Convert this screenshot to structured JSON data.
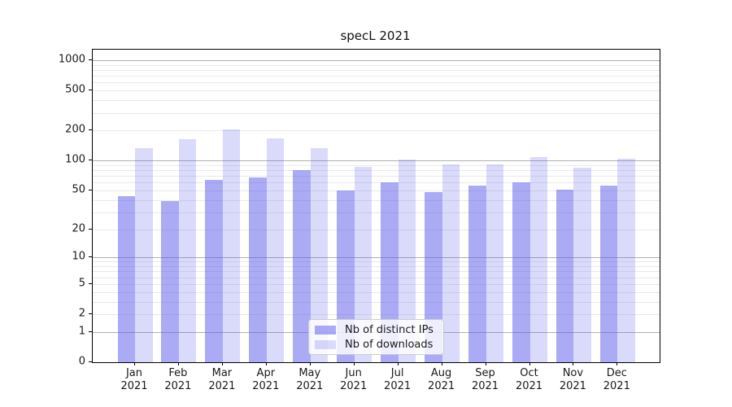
{
  "title": "specL 2021",
  "chart_data": {
    "type": "bar",
    "title": "specL 2021",
    "xlabel": "",
    "ylabel": "",
    "categories": [
      "Jan 2021",
      "Feb 2021",
      "Mar 2021",
      "Apr 2021",
      "May 2021",
      "Jun 2021",
      "Jul 2021",
      "Aug 2021",
      "Sep 2021",
      "Oct 2021",
      "Nov 2021",
      "Dec 2021"
    ],
    "series": [
      {
        "name": "Nb of distinct IPs",
        "color": "rgba(88,88,235,0.50)",
        "values": [
          44,
          39,
          64,
          67,
          80,
          50,
          60,
          48,
          56,
          60,
          51,
          56
        ]
      },
      {
        "name": "Nb of downloads",
        "color": "rgba(88,88,235,0.22)",
        "values": [
          132,
          163,
          205,
          166,
          133,
          87,
          102,
          91,
          91,
          108,
          84,
          104
        ]
      }
    ],
    "yscale": "log1p",
    "ylim": [
      0,
      1274
    ],
    "yticks": [
      0,
      1,
      2,
      5,
      10,
      20,
      50,
      100,
      200,
      500,
      1000
    ],
    "major_gridlines": [
      1,
      10,
      100,
      1000
    ],
    "minor_grid_subs": [
      2,
      3,
      4,
      5,
      6,
      7,
      8,
      9
    ],
    "grid": true,
    "legend_position": "lower center",
    "colors": {
      "bar_dark_rendered": "#ababf5",
      "bar_light_rendered": "#dadafa",
      "major_grid": "#b0b0b0",
      "minor_grid": "#e9e9e9",
      "spine": "#000000",
      "text": "#1a1a1a"
    }
  }
}
